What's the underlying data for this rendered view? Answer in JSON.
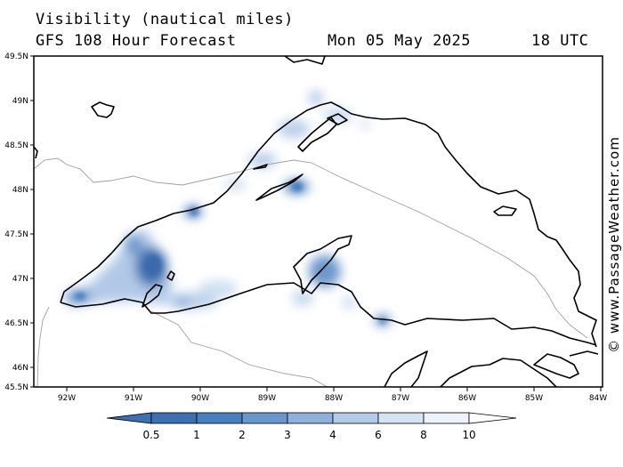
{
  "header": {
    "title": "Visibility (nautical miles)",
    "model": "GFS 108 Hour Forecast",
    "date": "Mon 05 May 2025",
    "time": "18 UTC"
  },
  "credit": "© www.PassageWeather.com",
  "map": {
    "lat_labels": [
      "49.5N",
      "49N",
      "48.5N",
      "48N",
      "47.5N",
      "47N",
      "46.5N",
      "46N",
      "45.5N"
    ],
    "lon_labels": [
      "92W",
      "91W",
      "90W",
      "89W",
      "88W",
      "87W",
      "86W",
      "85W",
      "84W"
    ],
    "colors": {
      "land_line": "#000000",
      "border_line": "#a0a0a0",
      "frame": "#000000"
    }
  },
  "colorbar": {
    "labels": [
      "0.5",
      "1",
      "2",
      "3",
      "4",
      "6",
      "8",
      "10"
    ],
    "colors": [
      "#3e6fb0",
      "#4a7fbf",
      "#6a97cb",
      "#8eb0da",
      "#b4cbe7",
      "#d6e3f2",
      "#edf3fa",
      "#ffffff"
    ]
  }
}
